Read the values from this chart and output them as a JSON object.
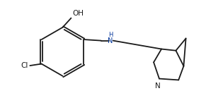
{
  "background_color": "#ffffff",
  "line_color": "#1a1a1a",
  "label_color_black": "#1a1a1a",
  "label_color_blue": "#003399",
  "figsize": [
    3.15,
    1.56
  ],
  "dpi": 100,
  "OH_label": "OH",
  "Cl_label": "Cl",
  "N_label": "N",
  "xlim": [
    -0.5,
    9.5
  ],
  "ylim": [
    0.5,
    5.2
  ]
}
